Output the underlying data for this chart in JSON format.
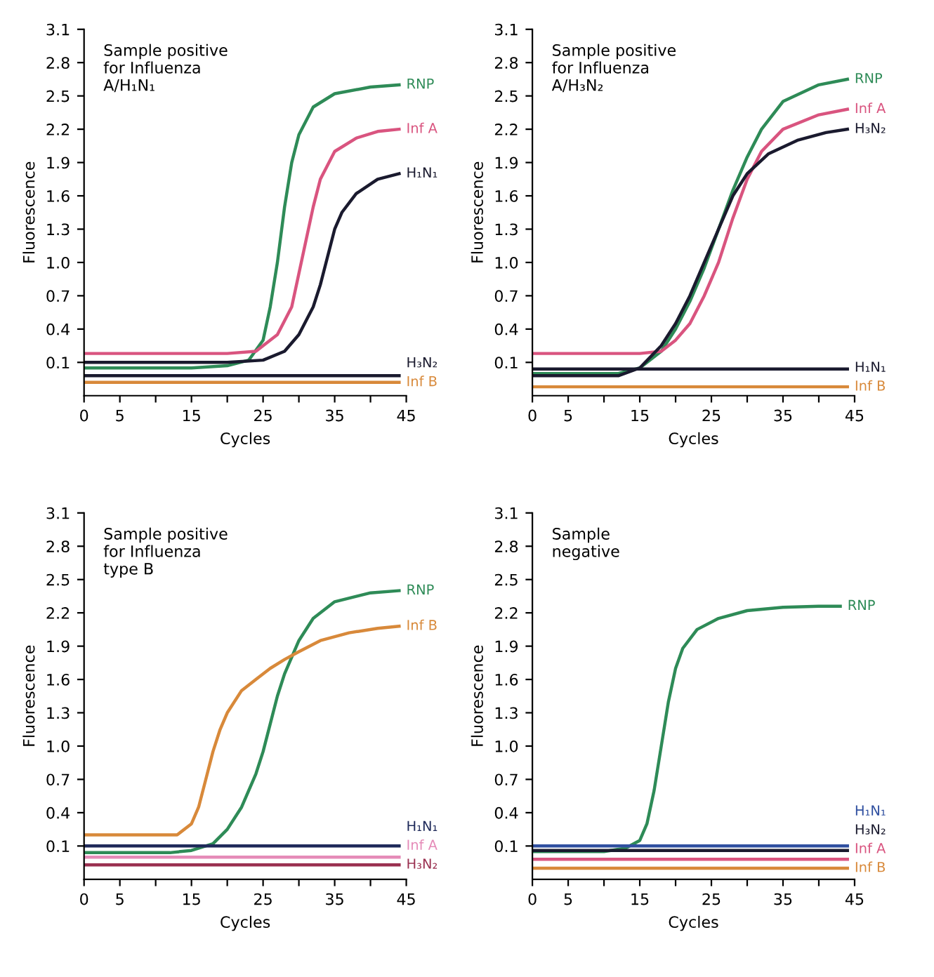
{
  "chart_data": [
    {
      "type": "line",
      "title": "Sample positive\nfor Influenza\nA/H₁N₁",
      "xlabel": "Cycles",
      "ylabel": "Fluorescence",
      "xlim": [
        0,
        45
      ],
      "ylim": [
        -0.2,
        3.1
      ],
      "xticks": [
        0,
        5,
        {
          "value": 10,
          "label": null
        },
        15,
        {
          "value": 20,
          "label": null
        },
        25,
        {
          "value": 30,
          "label": null
        },
        35,
        {
          "value": 40,
          "label": null
        },
        45
      ],
      "yticks": [
        0.1,
        0.4,
        0.7,
        {
          "value": 1.0,
          "label": "1.0"
        },
        1.3,
        1.6,
        1.9,
        2.2,
        2.5,
        2.8,
        3.1
      ],
      "legend": false,
      "grid": false,
      "marker": "none",
      "line_style": "solid",
      "series": [
        {
          "name": "RNP",
          "color": "#2e8b57",
          "x": [
            0,
            15,
            20,
            23,
            25,
            26,
            27,
            28,
            29,
            30,
            32,
            35,
            40,
            44
          ],
          "values": [
            0.05,
            0.05,
            0.07,
            0.12,
            0.3,
            0.6,
            1.0,
            1.5,
            1.9,
            2.15,
            2.4,
            2.52,
            2.58,
            2.6
          ]
        },
        {
          "name": "Inf A",
          "color": "#d9547f",
          "x": [
            0,
            20,
            24,
            27,
            29,
            30,
            31,
            32,
            33,
            35,
            38,
            41,
            44
          ],
          "values": [
            0.18,
            0.18,
            0.2,
            0.35,
            0.6,
            0.9,
            1.2,
            1.5,
            1.75,
            2.0,
            2.12,
            2.18,
            2.2
          ]
        },
        {
          "name": "H₁N₁",
          "color": "#1a1a2e",
          "x": [
            0,
            20,
            25,
            28,
            30,
            32,
            33,
            34,
            35,
            36,
            38,
            41,
            44
          ],
          "values": [
            0.1,
            0.1,
            0.12,
            0.2,
            0.35,
            0.6,
            0.8,
            1.05,
            1.3,
            1.45,
            1.62,
            1.75,
            1.8
          ]
        },
        {
          "name": "H₃N₂",
          "color": "#1a1a2e",
          "x": [
            0,
            44
          ],
          "values": [
            -0.02,
            -0.02
          ]
        },
        {
          "name": "Inf B",
          "color": "#d8893a",
          "x": [
            0,
            44
          ],
          "values": [
            -0.08,
            -0.08
          ]
        }
      ]
    },
    {
      "type": "line",
      "title": "Sample positive\nfor Influenza\nA/H₃N₂",
      "xlabel": "Cycles",
      "ylabel": "Fluorescence",
      "xlim": [
        0,
        45
      ],
      "ylim": [
        -0.2,
        3.1
      ],
      "xticks": [
        0,
        5,
        {
          "value": 10,
          "label": null
        },
        15,
        {
          "value": 20,
          "label": null
        },
        25,
        {
          "value": 30,
          "label": null
        },
        35,
        {
          "value": 40,
          "label": null
        },
        45
      ],
      "yticks": [
        0.1,
        0.4,
        0.7,
        {
          "value": 1.0,
          "label": "1.0"
        },
        1.3,
        1.6,
        1.9,
        2.2,
        2.5,
        2.8,
        3.1
      ],
      "legend": false,
      "grid": false,
      "marker": "none",
      "line_style": "solid",
      "series": [
        {
          "name": "RNP",
          "color": "#2e8b57",
          "x": [
            0,
            12,
            15,
            18,
            20,
            22,
            24,
            26,
            28,
            30,
            32,
            35,
            40,
            44
          ],
          "values": [
            0.0,
            0.0,
            0.05,
            0.2,
            0.4,
            0.65,
            0.95,
            1.3,
            1.65,
            1.95,
            2.2,
            2.45,
            2.6,
            2.65
          ]
        },
        {
          "name": "Inf A",
          "color": "#d9547f",
          "x": [
            0,
            15,
            18,
            20,
            22,
            24,
            26,
            28,
            30,
            32,
            35,
            40,
            44
          ],
          "values": [
            0.18,
            0.18,
            0.2,
            0.3,
            0.45,
            0.7,
            1.0,
            1.4,
            1.75,
            2.0,
            2.2,
            2.33,
            2.38
          ]
        },
        {
          "name": "H₃N₂",
          "color": "#1a1a2e",
          "x": [
            0,
            12,
            15,
            18,
            20,
            22,
            24,
            26,
            28,
            30,
            33,
            37,
            41,
            44
          ],
          "values": [
            -0.02,
            -0.02,
            0.05,
            0.25,
            0.45,
            0.7,
            1.0,
            1.3,
            1.6,
            1.8,
            1.98,
            2.1,
            2.17,
            2.2
          ]
        },
        {
          "name": "H₁N₁",
          "color": "#1a1a2e",
          "x": [
            0,
            44
          ],
          "values": [
            0.04,
            0.04
          ]
        },
        {
          "name": "Inf B",
          "color": "#d8893a",
          "x": [
            0,
            44
          ],
          "values": [
            -0.12,
            -0.12
          ]
        }
      ]
    },
    {
      "type": "line",
      "title": "Sample positive\nfor Influenza\ntype B",
      "xlabel": "Cycles",
      "ylabel": "Fluorescence",
      "xlim": [
        0,
        45
      ],
      "ylim": [
        -0.2,
        3.1
      ],
      "xticks": [
        0,
        5,
        {
          "value": 10,
          "label": null
        },
        15,
        {
          "value": 20,
          "label": null
        },
        25,
        {
          "value": 30,
          "label": null
        },
        35,
        {
          "value": 40,
          "label": null
        },
        45
      ],
      "yticks": [
        {
          "value": 0.1,
          "label": "0.1"
        },
        {
          "value": 0.4,
          "label": "0.4"
        },
        {
          "value": 0.7,
          "label": "0.7"
        },
        {
          "value": 1.0,
          "label": "1.0"
        },
        {
          "value": 1.3,
          "label": "1.3"
        },
        {
          "value": 1.6,
          "label": "1.6"
        },
        {
          "value": 1.9,
          "label": "1.9"
        },
        {
          "value": 2.2,
          "label": "2.2"
        },
        {
          "value": 2.5,
          "label": "2.5"
        },
        {
          "value": 2.8,
          "label": "2.8"
        },
        {
          "value": 3.1,
          "label": "3.1"
        }
      ],
      "legend": false,
      "grid": false,
      "marker": "none",
      "line_style": "solid",
      "series": [
        {
          "name": "RNP",
          "color": "#2e8b57",
          "x": [
            0,
            12,
            15,
            18,
            20,
            22,
            24,
            25,
            26,
            27,
            28,
            29,
            30,
            32,
            35,
            40,
            44
          ],
          "values": [
            0.04,
            0.04,
            0.06,
            0.12,
            0.25,
            0.45,
            0.75,
            0.95,
            1.2,
            1.45,
            1.65,
            1.8,
            1.95,
            2.15,
            2.3,
            2.38,
            2.4
          ]
        },
        {
          "name": "Inf B",
          "color": "#d8893a",
          "x": [
            0,
            13,
            15,
            16,
            17,
            18,
            19,
            20,
            22,
            24,
            26,
            28,
            30,
            33,
            37,
            41,
            44
          ],
          "values": [
            0.2,
            0.2,
            0.3,
            0.45,
            0.7,
            0.95,
            1.15,
            1.3,
            1.5,
            1.6,
            1.7,
            1.78,
            1.85,
            1.95,
            2.02,
            2.06,
            2.08
          ]
        },
        {
          "name": "H₁N₁",
          "color": "#1f2a5a",
          "x": [
            0,
            44
          ],
          "values": [
            0.1,
            0.1
          ]
        },
        {
          "name": "Inf A",
          "color": "#e58bb8",
          "x": [
            0,
            44
          ],
          "values": [
            0.0,
            0.0
          ]
        },
        {
          "name": "H₃N₂",
          "color": "#9a3050",
          "x": [
            0,
            44
          ],
          "values": [
            -0.07,
            -0.07
          ]
        }
      ]
    },
    {
      "type": "line",
      "title": "Sample\nnegative",
      "xlabel": "Cycles",
      "ylabel": "Fluorescence",
      "xlim": [
        0,
        45
      ],
      "ylim": [
        -0.2,
        3.1
      ],
      "xticks": [
        0,
        5,
        {
          "value": 10,
          "label": null
        },
        15,
        {
          "value": 20,
          "label": null
        },
        25,
        {
          "value": 30,
          "label": null
        },
        35,
        {
          "value": 40,
          "label": null
        },
        45
      ],
      "yticks": [
        0.1,
        0.4,
        0.7,
        {
          "value": 1.0,
          "label": "1.0"
        },
        1.3,
        1.6,
        1.9,
        2.2,
        2.5,
        2.8,
        3.1
      ],
      "legend": false,
      "grid": false,
      "marker": "none",
      "line_style": "solid",
      "series": [
        {
          "name": "RNP",
          "color": "#2e8b57",
          "x": [
            0,
            10,
            13,
            15,
            16,
            17,
            18,
            19,
            20,
            21,
            23,
            26,
            30,
            35,
            40,
            43
          ],
          "values": [
            0.05,
            0.05,
            0.08,
            0.15,
            0.3,
            0.6,
            1.0,
            1.4,
            1.7,
            1.88,
            2.05,
            2.15,
            2.22,
            2.25,
            2.26,
            2.26
          ]
        },
        {
          "name": "H₁N₁",
          "color": "#3050a0",
          "x": [
            0,
            44
          ],
          "values": [
            0.1,
            0.1
          ]
        },
        {
          "name": "H₃N₂",
          "color": "#1a1a2e",
          "x": [
            0,
            44
          ],
          "values": [
            0.06,
            0.06
          ]
        },
        {
          "name": "Inf A",
          "color": "#d9547f",
          "x": [
            0,
            44
          ],
          "values": [
            -0.02,
            -0.02
          ]
        },
        {
          "name": "Inf B",
          "color": "#d8893a",
          "x": [
            0,
            44
          ],
          "values": [
            -0.1,
            -0.1
          ]
        }
      ]
    }
  ]
}
